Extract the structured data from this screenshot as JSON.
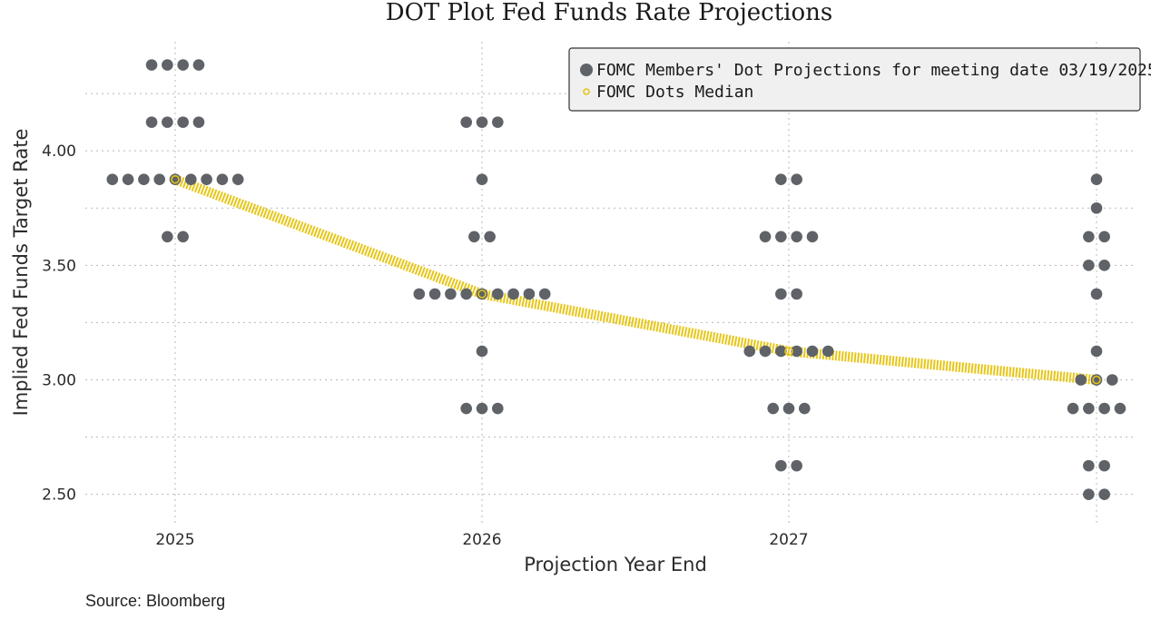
{
  "chart_data": {
    "type": "scatter",
    "title": "DOT Plot Fed Funds Rate Projections",
    "xlabel": "Projection Year End",
    "ylabel": "Implied Fed Funds Target Rate",
    "x_categories": [
      "2025",
      "2026",
      "2027",
      ""
    ],
    "ylim": [
      2.36,
      4.5
    ],
    "y_ticks": [
      "4.00",
      "3.50",
      "3.00",
      "2.50"
    ],
    "y_tick_values": [
      4.0,
      3.5,
      3.0,
      2.5
    ],
    "grid": true,
    "legend_position": "top-right",
    "colors": {
      "dots": "#5f6368",
      "median": "#e6c619"
    },
    "series": [
      {
        "name": "FOMC Members' Dot Projections for meeting date 03/19/2025",
        "kind": "dots",
        "groups": [
          {
            "category": "2025",
            "rows": [
              {
                "y": 4.375,
                "count": 4
              },
              {
                "y": 4.125,
                "count": 4
              },
              {
                "y": 3.875,
                "count": 9
              },
              {
                "y": 3.625,
                "count": 2
              }
            ]
          },
          {
            "category": "2026",
            "rows": [
              {
                "y": 4.125,
                "count": 3
              },
              {
                "y": 3.875,
                "count": 1
              },
              {
                "y": 3.625,
                "count": 2
              },
              {
                "y": 3.375,
                "count": 9
              },
              {
                "y": 3.125,
                "count": 1
              },
              {
                "y": 2.875,
                "count": 3
              }
            ]
          },
          {
            "category": "2027",
            "rows": [
              {
                "y": 3.875,
                "count": 2
              },
              {
                "y": 3.625,
                "count": 4
              },
              {
                "y": 3.375,
                "count": 2
              },
              {
                "y": 3.125,
                "count": 6
              },
              {
                "y": 2.875,
                "count": 3
              },
              {
                "y": 2.625,
                "count": 2
              }
            ]
          },
          {
            "category": "",
            "rows": [
              {
                "y": 3.875,
                "count": 1
              },
              {
                "y": 3.75,
                "count": 1
              },
              {
                "y": 3.625,
                "count": 2
              },
              {
                "y": 3.5,
                "count": 2
              },
              {
                "y": 3.375,
                "count": 1
              },
              {
                "y": 3.125,
                "count": 1
              },
              {
                "y": 3.0,
                "count": 3
              },
              {
                "y": 2.875,
                "count": 4
              },
              {
                "y": 2.625,
                "count": 2
              },
              {
                "y": 2.5,
                "count": 2
              }
            ]
          }
        ]
      },
      {
        "name": "FOMC Dots Median",
        "kind": "median",
        "points": [
          {
            "category": "2025",
            "y": 3.875
          },
          {
            "category": "2026",
            "y": 3.375
          },
          {
            "category": "2027",
            "y": 3.125
          },
          {
            "category": "",
            "y": 3.0
          }
        ]
      }
    ]
  },
  "source": "Source: Bloomberg"
}
